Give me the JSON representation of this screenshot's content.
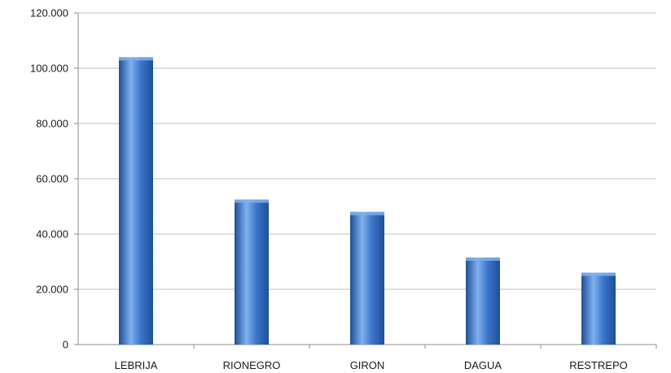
{
  "chart_data": {
    "type": "bar",
    "title": "",
    "xlabel": "",
    "ylabel": "",
    "categories": [
      "LEBRIJA",
      "RIONEGRO",
      "GIRON",
      "DAGUA",
      "RESTREPO"
    ],
    "values": [
      104000,
      52500,
      48000,
      31500,
      26000
    ],
    "ylim": [
      0,
      120000
    ],
    "yticks": [
      0,
      20000,
      40000,
      60000,
      80000,
      100000,
      120000
    ],
    "ytick_labels": [
      "0",
      "20.000",
      "40.000",
      "60.000",
      "80.000",
      "100.000",
      "120.000"
    ],
    "grid": true,
    "legend": "none",
    "bar_color": "#3a74c9",
    "bar_color_dark": "#1f4f96",
    "bar_color_light": "#7fb0ee",
    "gridline_color": "#bfbfbf",
    "axis_color": "#8c8c8c"
  }
}
